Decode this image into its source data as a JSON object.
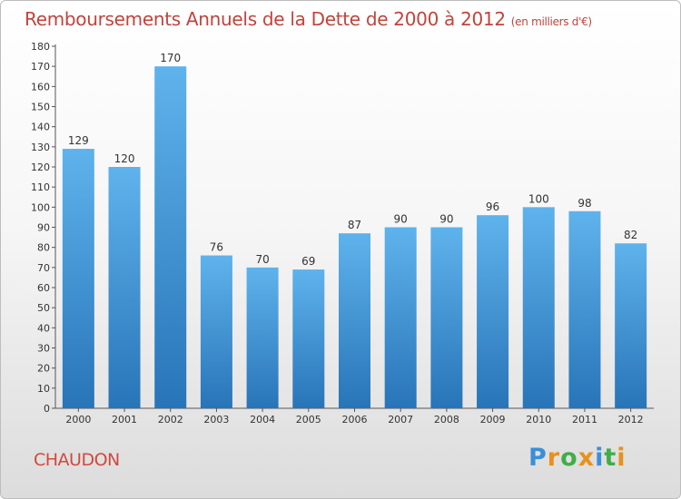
{
  "chart_data": {
    "type": "bar",
    "title": "Remboursements Annuels de la Dette de 2000 à 2012",
    "unit": "(en milliers d'€)",
    "categories": [
      "2000",
      "2001",
      "2002",
      "2003",
      "2004",
      "2005",
      "2006",
      "2007",
      "2008",
      "2009",
      "2010",
      "2011",
      "2012"
    ],
    "values": [
      129,
      120,
      170,
      76,
      70,
      69,
      87,
      90,
      90,
      96,
      100,
      98,
      82
    ],
    "ylim": [
      0,
      180
    ],
    "ytick_step": 10,
    "grid": false,
    "bar_color": "#3d97dc"
  },
  "commune": "CHAUDON",
  "logo": {
    "text": "Proxiti",
    "letters": [
      {
        "ch": "P",
        "color": "#3b8fd8"
      },
      {
        "ch": "r",
        "color": "#e8911a"
      },
      {
        "ch": "o",
        "color": "#3fae48"
      },
      {
        "ch": "x",
        "color": "#e8911a"
      },
      {
        "ch": "i",
        "color": "#3b8fd8"
      },
      {
        "ch": "t",
        "color": "#3fae48"
      },
      {
        "ch": "i",
        "color": "#e8911a"
      }
    ]
  }
}
